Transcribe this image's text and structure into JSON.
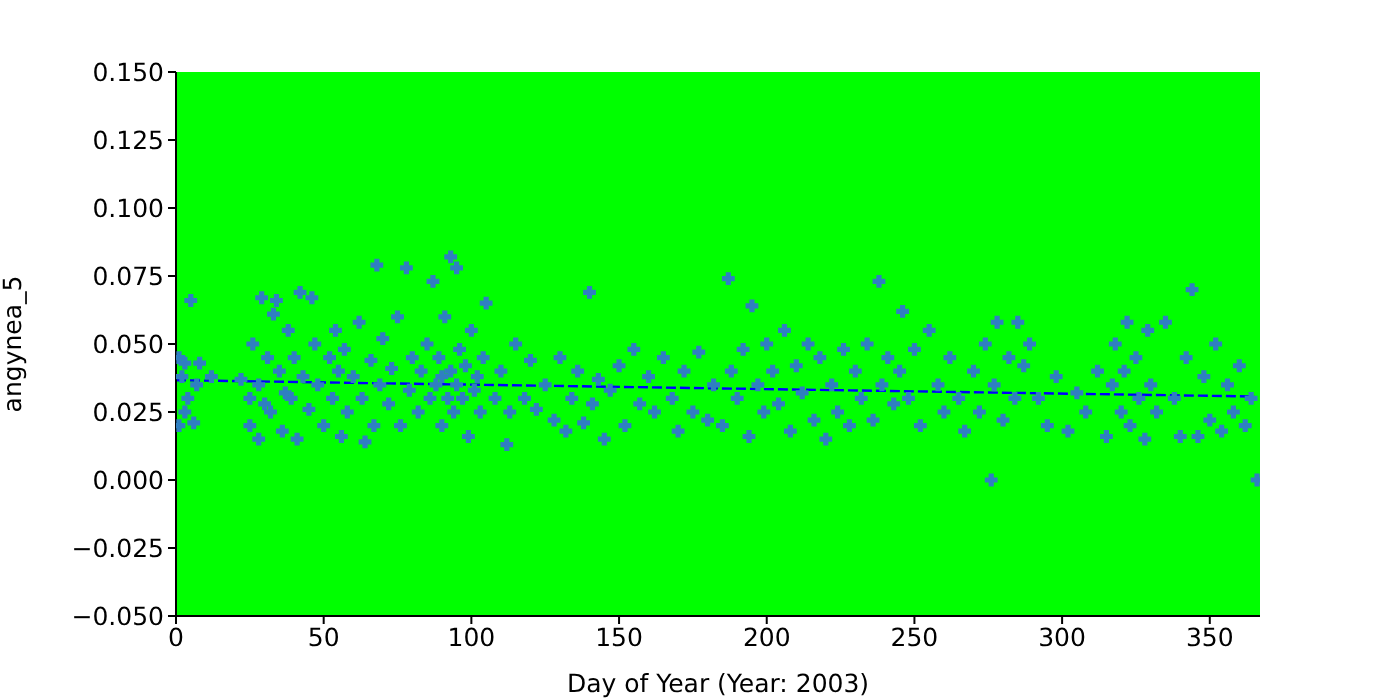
{
  "chart_data": {
    "type": "scatter",
    "xlabel": "Day of Year (Year: 2003)",
    "ylabel": "angynea_5",
    "xlim": [
      0,
      367
    ],
    "xticks": [
      0,
      50,
      100,
      150,
      200,
      250,
      300,
      350
    ],
    "ylim": [
      -0.05,
      0.15
    ],
    "yticks": [
      {
        "value": -0.05,
        "label": "−0.050"
      },
      {
        "value": -0.025,
        "label": "−0.025"
      },
      {
        "value": 0,
        "label": "0.000"
      },
      {
        "value": 0.025,
        "label": "0.025"
      },
      {
        "value": 0.05,
        "label": "0.050"
      },
      {
        "value": 0.075,
        "label": "0.075"
      },
      {
        "value": 0.1,
        "label": "0.100"
      },
      {
        "value": 0.125,
        "label": "0.125"
      },
      {
        "value": 0.15,
        "label": "0.150"
      }
    ],
    "grid": false,
    "marker": "cross",
    "series": [
      {
        "color": "#2f7fc1",
        "x": [
          1,
          1,
          2,
          3,
          3,
          4,
          5,
          6,
          7,
          8,
          12,
          22,
          25,
          25,
          26,
          28,
          28,
          29,
          30,
          31,
          32,
          33,
          34,
          35,
          36,
          37,
          38,
          39,
          40,
          41,
          42,
          43,
          45,
          46,
          47,
          48,
          50,
          52,
          53,
          54,
          55,
          56,
          57,
          58,
          60,
          62,
          63,
          64,
          66,
          67,
          68,
          69,
          70,
          72,
          73,
          75,
          76,
          78,
          79,
          80,
          82,
          83,
          85,
          86,
          87,
          88,
          89,
          90,
          90,
          91,
          92,
          93,
          93,
          94,
          95,
          95,
          96,
          97,
          98,
          99,
          100,
          101,
          102,
          103,
          104,
          105,
          108,
          110,
          112,
          113,
          115,
          118,
          120,
          122,
          125,
          128,
          130,
          132,
          134,
          136,
          138,
          140,
          141,
          143,
          145,
          147,
          150,
          152,
          155,
          157,
          160,
          162,
          165,
          168,
          170,
          172,
          175,
          177,
          180,
          182,
          185,
          187,
          188,
          190,
          192,
          194,
          195,
          197,
          199,
          200,
          202,
          204,
          206,
          208,
          210,
          212,
          214,
          216,
          218,
          220,
          222,
          224,
          226,
          228,
          230,
          232,
          234,
          236,
          238,
          239,
          241,
          243,
          245,
          246,
          248,
          250,
          252,
          255,
          258,
          260,
          262,
          265,
          267,
          270,
          272,
          274,
          276,
          277,
          278,
          280,
          282,
          284,
          285,
          287,
          289,
          292,
          295,
          298,
          302,
          305,
          308,
          312,
          315,
          317,
          318,
          320,
          321,
          322,
          323,
          325,
          326,
          328,
          329,
          330,
          332,
          335,
          338,
          340,
          342,
          344,
          346,
          348,
          350,
          352,
          354,
          356,
          358,
          360,
          362,
          364,
          366
        ],
        "values": [
          0.045,
          0.02,
          0.038,
          0.025,
          0.043,
          0.03,
          0.066,
          0.021,
          0.035,
          0.043,
          0.038,
          0.037,
          0.02,
          0.03,
          0.05,
          0.015,
          0.035,
          0.067,
          0.028,
          0.045,
          0.025,
          0.061,
          0.066,
          0.04,
          0.018,
          0.032,
          0.055,
          0.03,
          0.045,
          0.015,
          0.069,
          0.038,
          0.026,
          0.067,
          0.05,
          0.035,
          0.02,
          0.045,
          0.03,
          0.055,
          0.04,
          0.016,
          0.048,
          0.025,
          0.038,
          0.058,
          0.03,
          0.014,
          0.044,
          0.02,
          0.079,
          0.035,
          0.052,
          0.028,
          0.041,
          0.06,
          0.02,
          0.078,
          0.033,
          0.045,
          0.025,
          0.04,
          0.05,
          0.03,
          0.073,
          0.035,
          0.045,
          0.02,
          0.038,
          0.06,
          0.03,
          0.082,
          0.04,
          0.025,
          0.078,
          0.035,
          0.048,
          0.03,
          0.042,
          0.016,
          0.055,
          0.033,
          0.038,
          0.025,
          0.045,
          0.065,
          0.03,
          0.04,
          0.013,
          0.025,
          0.05,
          0.03,
          0.044,
          0.026,
          0.035,
          0.022,
          0.045,
          0.018,
          0.03,
          0.04,
          0.021,
          0.069,
          0.028,
          0.037,
          0.015,
          0.033,
          0.042,
          0.02,
          0.048,
          0.028,
          0.038,
          0.025,
          0.045,
          0.03,
          0.018,
          0.04,
          0.025,
          0.047,
          0.022,
          0.035,
          0.02,
          0.074,
          0.04,
          0.03,
          0.048,
          0.016,
          0.064,
          0.035,
          0.025,
          0.05,
          0.04,
          0.028,
          0.055,
          0.018,
          0.042,
          0.032,
          0.05,
          0.022,
          0.045,
          0.015,
          0.035,
          0.025,
          0.048,
          0.02,
          0.04,
          0.03,
          0.05,
          0.022,
          0.073,
          0.035,
          0.045,
          0.028,
          0.04,
          0.062,
          0.03,
          0.048,
          0.02,
          0.055,
          0.035,
          0.025,
          0.045,
          0.03,
          0.018,
          0.04,
          0.025,
          0.05,
          0.0,
          0.035,
          0.058,
          0.022,
          0.045,
          0.03,
          0.058,
          0.042,
          0.05,
          0.03,
          0.02,
          0.038,
          0.018,
          0.032,
          0.025,
          0.04,
          0.016,
          0.035,
          0.05,
          0.025,
          0.04,
          0.058,
          0.02,
          0.045,
          0.03,
          0.015,
          0.055,
          0.035,
          0.025,
          0.058,
          0.03,
          0.016,
          0.045,
          0.07,
          0.016,
          0.038,
          0.022,
          0.05,
          0.018,
          0.035,
          0.025,
          0.042,
          0.02,
          0.03,
          0.0
        ]
      },
      {
        "type": "line",
        "color": "#0000ff",
        "line_style": "dashed",
        "marker": "none",
        "x": [
          0,
          365
        ],
        "values": [
          0.0367,
          0.0307
        ]
      }
    ]
  }
}
